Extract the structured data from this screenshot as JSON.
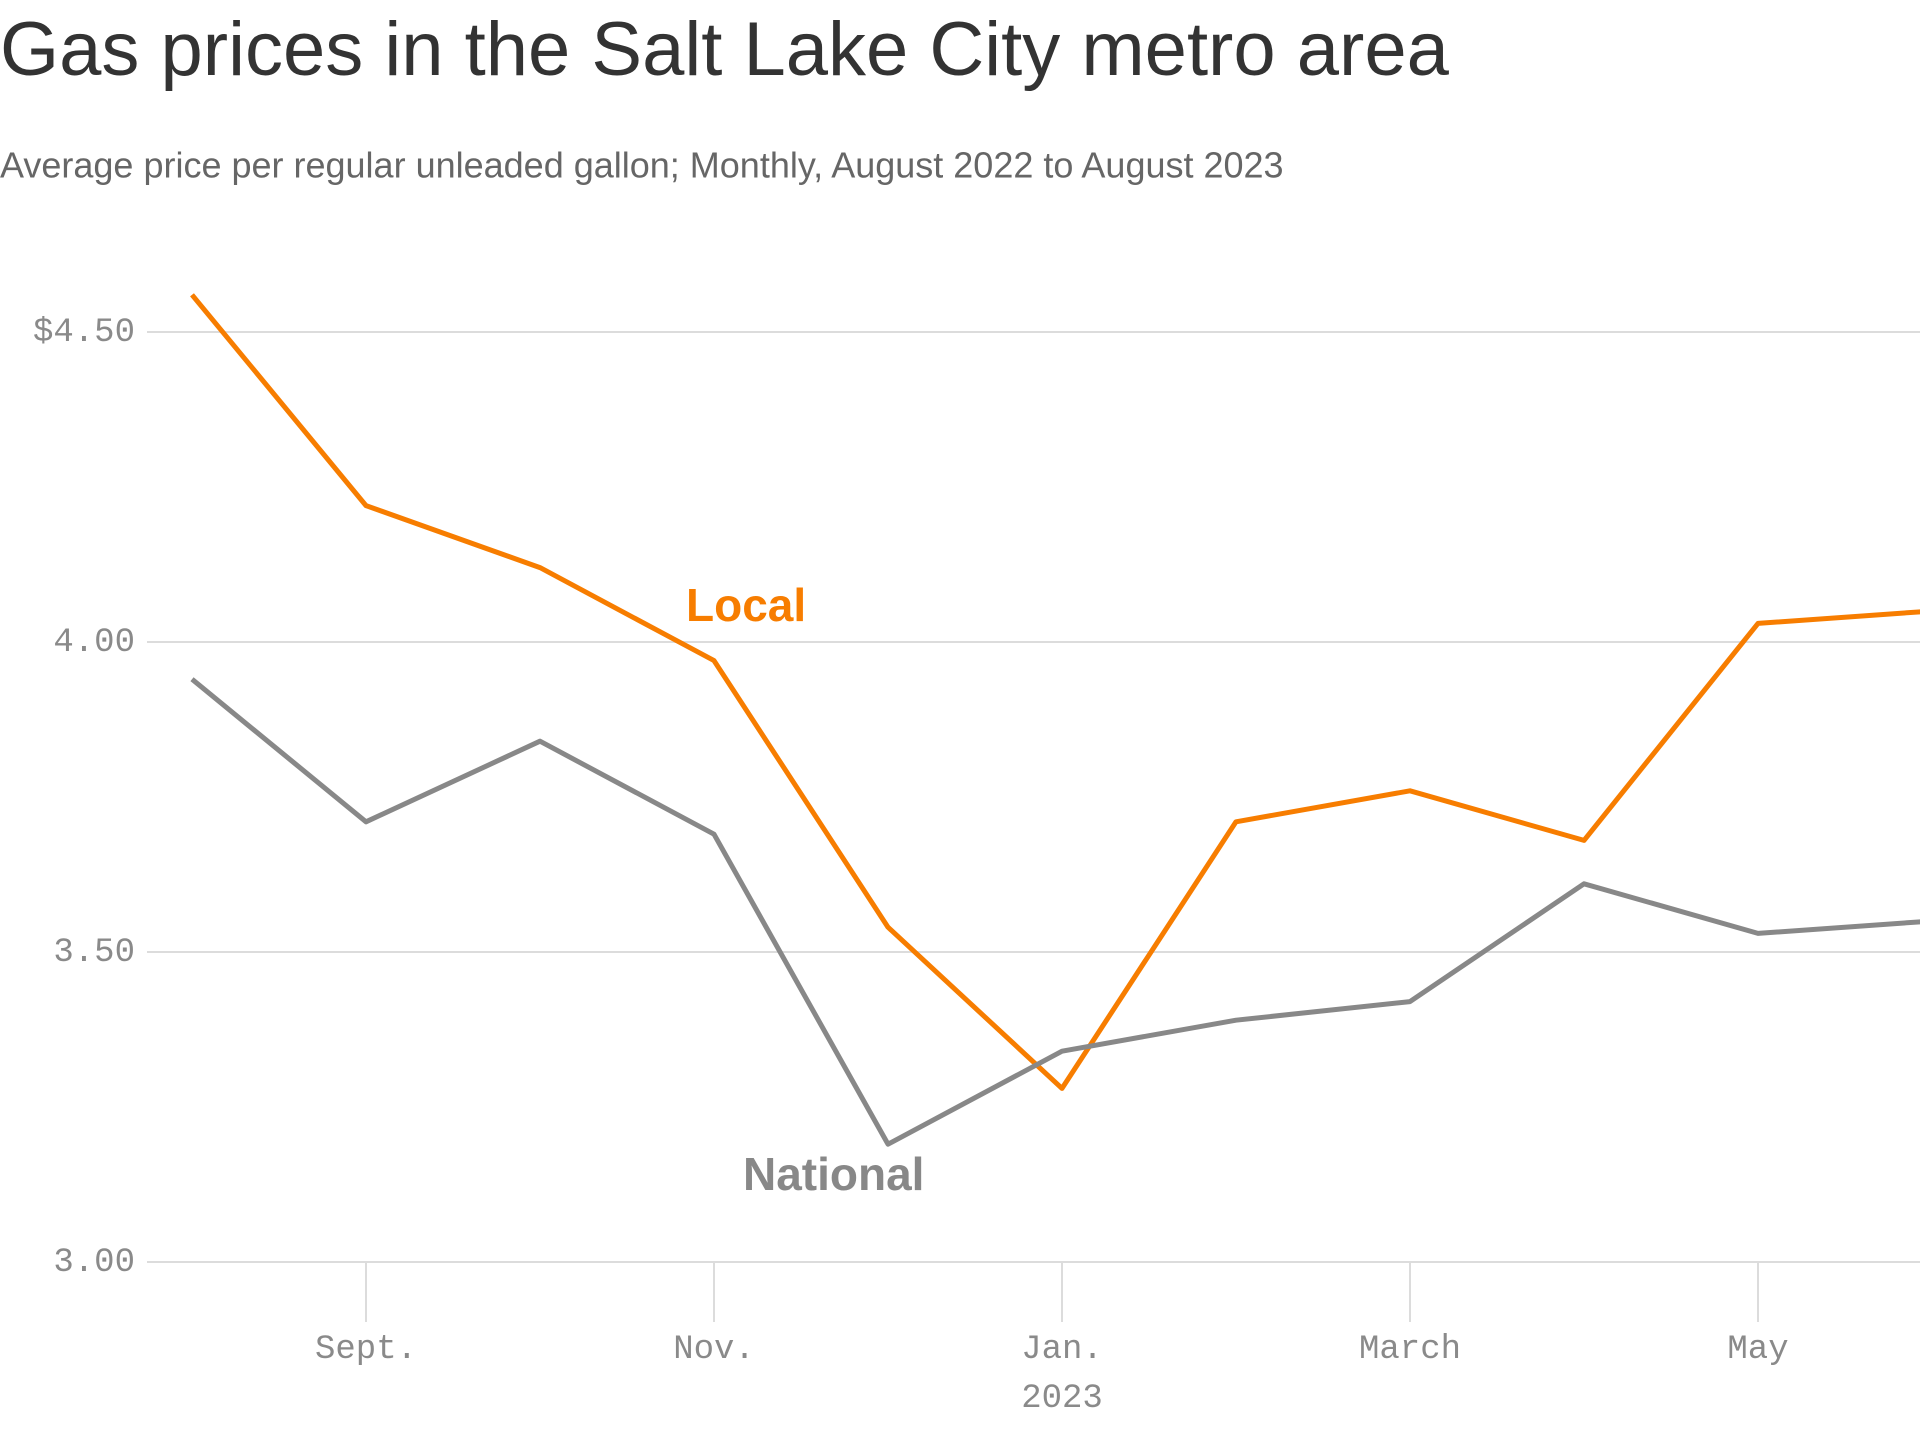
{
  "chart_data": {
    "type": "line",
    "title": "Gas prices in the Salt Lake City metro area",
    "subtitle": "Average price per regular unleaded gallon; Monthly, August 2022 to August 2023",
    "categories": [
      null,
      "Sept.",
      null,
      "Nov.",
      null,
      "Jan.",
      null,
      "March",
      null,
      "May",
      null
    ],
    "x_sublabel": "2023",
    "series": [
      {
        "name": "Local",
        "color": "#f77d00",
        "values": [
          4.56,
          4.22,
          4.12,
          3.97,
          3.54,
          3.28,
          3.71,
          3.76,
          3.68,
          4.03,
          4.05
        ]
      },
      {
        "name": "National",
        "color": "#888888",
        "values": [
          3.94,
          3.71,
          3.84,
          3.69,
          3.19,
          3.34,
          3.39,
          3.42,
          3.61,
          3.53,
          3.55
        ]
      }
    ],
    "ylim": [
      3.0,
      4.6
    ],
    "yticks": [
      {
        "value": 4.5,
        "label": "$4.50"
      },
      {
        "value": 4.0,
        "label": "4.00"
      },
      {
        "value": 3.5,
        "label": "3.50"
      },
      {
        "value": 3.0,
        "label": "3.00"
      }
    ],
    "grid": true
  }
}
